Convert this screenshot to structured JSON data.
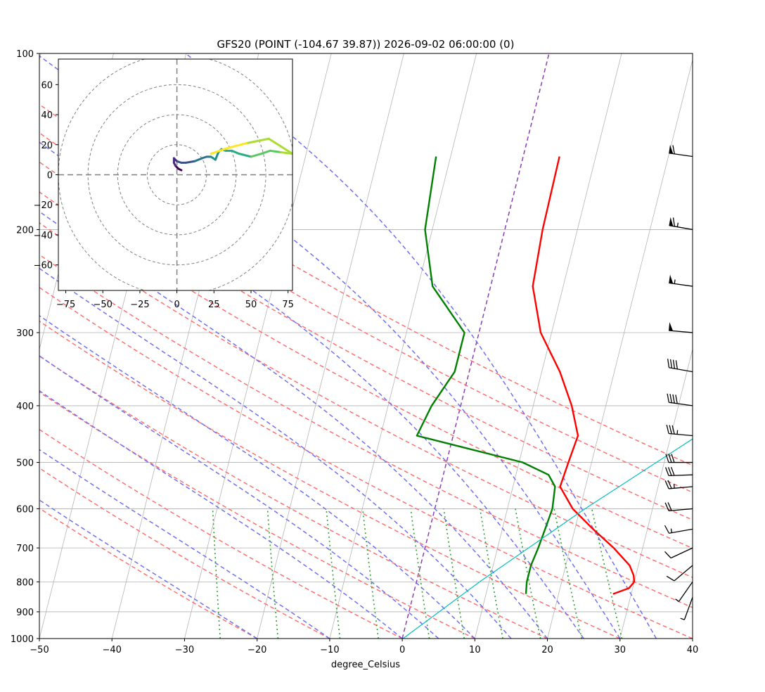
{
  "figure": {
    "title": "GFS20 (POINT (-104.67 39.87)) 2026-09-02 06:00:00 (0)"
  },
  "chart_data": [
    {
      "type": "line",
      "subtype": "skew-t log-p sounding",
      "title": "GFS20 (POINT (-104.67 39.87)) 2026-09-02 06:00:00 (0)",
      "xlabel": "degree_Celsius",
      "ylabel": "",
      "xlim": [
        -50,
        40
      ],
      "ylim": [
        1000,
        100
      ],
      "y_scale": "log",
      "x_ticks": [
        -50,
        -40,
        -30,
        -20,
        -10,
        0,
        10,
        20,
        30,
        40
      ],
      "y_ticks": [
        1000,
        900,
        800,
        700,
        600,
        500,
        400,
        300,
        200,
        100
      ],
      "grid": "horizontal at pressure ticks",
      "colors": {
        "temperature": "#ff0000",
        "dewpoint": "#008000",
        "dry_adiabats": "#ff7070",
        "moist_adiabats": "#7070f0",
        "mixing_ratio": "#2ca02c",
        "parcel_path": "#00bfbf",
        "isotherms": "#b4b4b4",
        "zero_isotherm": "#8a3fb0"
      },
      "series": [
        {
          "role": "temperature",
          "pressure": [
            839,
            820,
            800,
            780,
            750,
            700,
            650,
            600,
            550,
            500,
            450,
            400,
            350,
            300,
            250,
            200,
            150
          ],
          "values": [
            27.5,
            29.5,
            30.0,
            29.7,
            28.8,
            26.0,
            22.5,
            19.0,
            16.5,
            16.8,
            17.2,
            15.3,
            12.5,
            8.5,
            5.8,
            5.2,
            5.0
          ]
        },
        {
          "role": "dewpoint",
          "pressure": [
            839,
            800,
            750,
            700,
            650,
            600,
            550,
            525,
            500,
            450,
            400,
            350,
            300,
            250,
            200,
            150
          ],
          "values": [
            15.5,
            15.2,
            15.2,
            15.6,
            15.9,
            16.2,
            15.8,
            14.5,
            10.5,
            -5.0,
            -4.0,
            -2.0,
            -2.0,
            -8.0,
            -11.0,
            -12.0
          ]
        },
        {
          "role": "parcel_path",
          "pressure": [
            1000,
            800,
            600,
            400,
            300
          ],
          "values": [
            0.1,
            8.7,
            20.7,
            39.0,
            51.0
          ]
        }
      ],
      "dry_adiabats_theta_C": [
        -20,
        -10,
        0,
        10,
        20,
        30,
        40,
        50,
        60,
        70,
        80,
        90,
        100
      ],
      "moist_adiabats_theta_C": [
        -20,
        -10,
        0,
        5,
        10,
        15,
        20,
        25,
        30,
        35
      ],
      "mixing_ratio_gkg": [
        0.5,
        1,
        2,
        3,
        5,
        7,
        10,
        14,
        20,
        28
      ],
      "wind_barbs": [
        {
          "pressure": 850,
          "speed_kt": 5,
          "dir": 200
        },
        {
          "pressure": 800,
          "speed_kt": 8,
          "dir": 215
        },
        {
          "pressure": 750,
          "speed_kt": 10,
          "dir": 230
        },
        {
          "pressure": 700,
          "speed_kt": 12,
          "dir": 245
        },
        {
          "pressure": 650,
          "speed_kt": 15,
          "dir": 260
        },
        {
          "pressure": 600,
          "speed_kt": 20,
          "dir": 265
        },
        {
          "pressure": 550,
          "speed_kt": 25,
          "dir": 265
        },
        {
          "pressure": 525,
          "speed_kt": 30,
          "dir": 268
        },
        {
          "pressure": 500,
          "speed_kt": 30,
          "dir": 270
        },
        {
          "pressure": 450,
          "speed_kt": 35,
          "dir": 275
        },
        {
          "pressure": 400,
          "speed_kt": 40,
          "dir": 278
        },
        {
          "pressure": 350,
          "speed_kt": 40,
          "dir": 280
        },
        {
          "pressure": 300,
          "speed_kt": 50,
          "dir": 275
        },
        {
          "pressure": 250,
          "speed_kt": 55,
          "dir": 278
        },
        {
          "pressure": 200,
          "speed_kt": 65,
          "dir": 280
        },
        {
          "pressure": 150,
          "speed_kt": 60,
          "dir": 278
        },
        {
          "pressure": 100,
          "speed_kt": 45,
          "dir": 275
        }
      ]
    },
    {
      "type": "line",
      "subtype": "hodograph",
      "title": "",
      "xlim": [
        -80,
        78
      ],
      "ylim": [
        -77,
        77
      ],
      "x_ticks": [
        -75,
        -50,
        -25,
        0,
        25,
        50,
        75
      ],
      "y_ticks": [
        -60,
        -40,
        -20,
        0,
        20,
        40,
        60
      ],
      "rings": [
        20,
        40,
        60,
        80
      ],
      "colormap": "viridis",
      "u": [
        3,
        1,
        -1,
        -2,
        -2,
        0,
        3,
        6,
        12,
        17,
        20,
        23,
        26,
        28,
        30,
        33,
        37,
        42,
        50,
        57,
        63,
        70,
        78,
        62,
        47,
        35,
        23
      ],
      "v": [
        3,
        4,
        6,
        8,
        11,
        9,
        8,
        8,
        9,
        11,
        12,
        12,
        10,
        15,
        17,
        16,
        16,
        14,
        12,
        14,
        16,
        15,
        14,
        24,
        21,
        18,
        14
      ]
    }
  ]
}
